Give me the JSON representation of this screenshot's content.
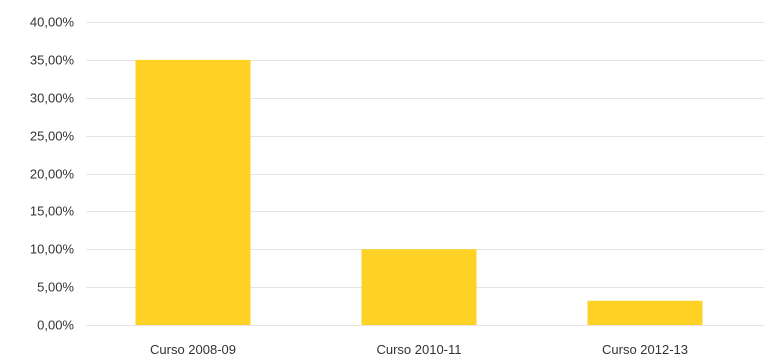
{
  "chart_data": {
    "type": "bar",
    "categories": [
      "Curso 2008-09",
      "Curso 2010-11",
      "Curso 2012-13"
    ],
    "values": [
      35.0,
      10.0,
      3.2
    ],
    "ylim": [
      0,
      40
    ],
    "yticks": [
      0,
      5,
      10,
      15,
      20,
      25,
      30,
      35,
      40
    ],
    "ytick_labels": [
      "0,00%",
      "5,00%",
      "10,00%",
      "15,00%",
      "20,00%",
      "25,00%",
      "30,00%",
      "35,00%",
      "40,00%"
    ],
    "grid": true,
    "legend": "none",
    "colors": {
      "bar": "#FDD224",
      "grid": "#e4e4e4",
      "text": "#333333"
    }
  }
}
